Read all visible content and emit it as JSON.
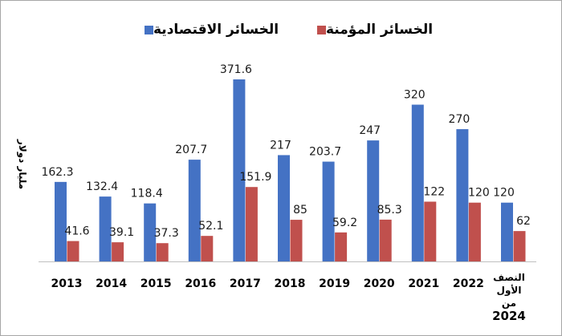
{
  "chart_data": {
    "type": "bar",
    "title": "",
    "xlabel": "",
    "ylabel": "مليار دولار",
    "categories": [
      "2013",
      "2014",
      "2015",
      "2016",
      "2017",
      "2018",
      "2019",
      "2020",
      "2021",
      "2022",
      "النصف الأول من 2024"
    ],
    "category_last_line1": "النصف",
    "category_last_line2": "الأول من",
    "category_last_line3": "2024",
    "series": [
      {
        "name": "الخسائر الاقتصادية",
        "color": "#4472c4",
        "values": [
          162.3,
          132.4,
          118.4,
          207.7,
          371.6,
          217,
          203.7,
          247,
          320,
          270,
          120
        ]
      },
      {
        "name": "الخسائر المؤمنة",
        "color": "#c0504d",
        "values": [
          41.6,
          39.1,
          37.3,
          52.1,
          151.9,
          85,
          59.2,
          85.3,
          122,
          120,
          62
        ]
      }
    ],
    "ylim": [
      0,
      400
    ],
    "grid": false,
    "legend_position": "top"
  }
}
